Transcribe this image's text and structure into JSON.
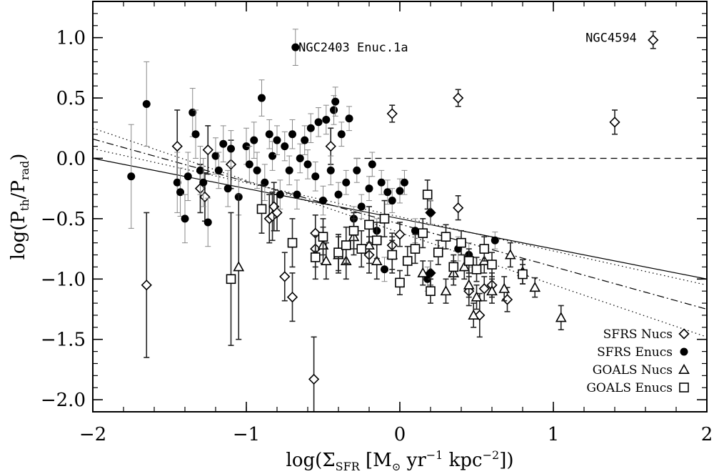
{
  "chart_data": {
    "type": "scatter",
    "xlim": [
      -2,
      2
    ],
    "ylim": [
      -2.1,
      1.3
    ],
    "x_ticks": [
      -2,
      -1,
      0,
      1,
      2
    ],
    "x_tick_labels": [
      "−2",
      "−1",
      "0",
      "1",
      "2"
    ],
    "y_ticks": [
      -2.0,
      -1.5,
      -1.0,
      -0.5,
      0.0,
      0.5,
      1.0
    ],
    "y_tick_labels": [
      "−2.0",
      "−1.5",
      "−1.0",
      "−0.5",
      "0.0",
      "0.5",
      "1.0"
    ],
    "xlabel": {
      "prefix": "log(Σ",
      "sub": "SFR",
      "mid": " [M",
      "sun": "⊙",
      "unit1": " yr",
      "exp1": "−1",
      "unit2": " kpc",
      "exp2": "−2",
      "suffix": "])"
    },
    "ylabel": {
      "prefix": "log(P",
      "sub1": "th",
      "mid": "/P",
      "sub2": "rad",
      "suffix": ")"
    },
    "grid": false,
    "legend_position": "bottom-right",
    "lines": [
      {
        "style": "solid",
        "x": [
          -2,
          2
        ],
        "y": [
          0.0,
          -1.0
        ]
      },
      {
        "style": "dotted",
        "x": [
          -2,
          2
        ],
        "y": [
          0.08,
          -1.05
        ]
      },
      {
        "style": "dotted",
        "x": [
          -2,
          2
        ],
        "y": [
          0.25,
          -1.48
        ]
      },
      {
        "style": "dashdot",
        "x": [
          -2,
          2
        ],
        "y": [
          0.16,
          -1.25
        ]
      },
      {
        "style": "dashed",
        "x": [
          -0.3,
          2
        ],
        "y": [
          0.0,
          0.0
        ]
      }
    ],
    "annotations": [
      {
        "text": "NGC2403 Enuc.1a",
        "x": -0.66,
        "y": 0.92
      },
      {
        "text": "NGC4594",
        "x": 1.21,
        "y": 1.0
      }
    ],
    "series": [
      {
        "name": "SFRS Nucs",
        "marker": "diamond",
        "points": [
          [
            -1.65,
            -1.05,
            0.6
          ],
          [
            -1.45,
            0.1,
            0.3
          ],
          [
            -1.3,
            -0.25,
            0.2
          ],
          [
            -1.27,
            -0.32,
            0.2
          ],
          [
            -1.25,
            0.07,
            0.2
          ],
          [
            -1.1,
            -0.05,
            0.2
          ],
          [
            -0.85,
            -0.5,
            0.2
          ],
          [
            -0.83,
            -0.48,
            0.2
          ],
          [
            -0.82,
            -0.4,
            0.2
          ],
          [
            -0.8,
            -0.45,
            0.15
          ],
          [
            -0.75,
            -0.98,
            0.2
          ],
          [
            -0.7,
            -1.15,
            0.2
          ],
          [
            -0.56,
            -1.83,
            0.35
          ],
          [
            -0.55,
            -0.75,
            0.15
          ],
          [
            -0.55,
            -0.62,
            0.15
          ],
          [
            -0.45,
            0.1,
            0.15
          ],
          [
            -0.2,
            -0.8,
            0.15
          ],
          [
            -0.05,
            0.37,
            0.07
          ],
          [
            -0.05,
            -0.72,
            0.1
          ],
          [
            0.0,
            -0.63,
            0.1
          ],
          [
            0.2,
            -0.95,
            0.1
          ],
          [
            0.2,
            -0.45,
            0.1
          ],
          [
            0.38,
            0.5,
            0.07
          ],
          [
            0.38,
            -0.41,
            0.1
          ],
          [
            0.45,
            -1.1,
            0.12
          ],
          [
            0.52,
            -1.3,
            0.18
          ],
          [
            0.55,
            -1.08,
            0.1
          ],
          [
            0.6,
            -1.05,
            0.1
          ],
          [
            0.7,
            -1.17,
            0.1
          ],
          [
            1.4,
            0.3,
            0.1
          ],
          [
            1.65,
            0.98,
            0.07
          ]
        ]
      },
      {
        "name": "SFRS Enucs",
        "marker": "circle",
        "points": [
          [
            -1.75,
            -0.15,
            0.43
          ],
          [
            -1.65,
            0.45,
            0.35
          ],
          [
            -1.45,
            -0.2,
            0.25
          ],
          [
            -1.43,
            -0.28,
            0.2
          ],
          [
            -1.4,
            -0.5,
            0.2
          ],
          [
            -1.38,
            -0.15,
            0.2
          ],
          [
            -1.35,
            0.38,
            0.2
          ],
          [
            -1.33,
            0.2,
            0.2
          ],
          [
            -1.3,
            -0.1,
            0.2
          ],
          [
            -1.28,
            -0.2,
            0.2
          ],
          [
            -1.25,
            -0.53,
            0.2
          ],
          [
            -1.2,
            0.02,
            0.15
          ],
          [
            -1.18,
            -0.1,
            0.15
          ],
          [
            -1.15,
            0.12,
            0.15
          ],
          [
            -1.12,
            -0.25,
            0.15
          ],
          [
            -1.1,
            0.08,
            0.15
          ],
          [
            -1.05,
            -0.32,
            0.15
          ],
          [
            -1.0,
            0.1,
            0.15
          ],
          [
            -0.98,
            -0.05,
            0.15
          ],
          [
            -0.95,
            0.15,
            0.15
          ],
          [
            -0.93,
            -0.1,
            0.15
          ],
          [
            -0.9,
            0.5,
            0.15
          ],
          [
            -0.88,
            -0.2,
            0.15
          ],
          [
            -0.85,
            0.2,
            0.12
          ],
          [
            -0.83,
            0.02,
            0.12
          ],
          [
            -0.8,
            0.15,
            0.12
          ],
          [
            -0.78,
            -0.3,
            0.12
          ],
          [
            -0.75,
            0.1,
            0.12
          ],
          [
            -0.72,
            -0.1,
            0.12
          ],
          [
            -0.7,
            0.2,
            0.12
          ],
          [
            -0.68,
            0.92,
            0.15
          ],
          [
            -0.67,
            -0.3,
            0.12
          ],
          [
            -0.65,
            0.0,
            0.12
          ],
          [
            -0.62,
            0.15,
            0.12
          ],
          [
            -0.6,
            -0.05,
            0.12
          ],
          [
            -0.58,
            0.25,
            0.12
          ],
          [
            -0.55,
            -0.15,
            0.12
          ],
          [
            -0.53,
            0.3,
            0.12
          ],
          [
            -0.5,
            -0.35,
            0.12
          ],
          [
            -0.48,
            0.32,
            0.12
          ],
          [
            -0.45,
            -0.1,
            0.12
          ],
          [
            -0.43,
            0.4,
            0.12
          ],
          [
            -0.42,
            0.47,
            0.12
          ],
          [
            -0.4,
            -0.3,
            0.1
          ],
          [
            -0.38,
            0.2,
            0.1
          ],
          [
            -0.35,
            -0.2,
            0.1
          ],
          [
            -0.33,
            0.33,
            0.1
          ],
          [
            -0.3,
            -0.5,
            0.1
          ],
          [
            -0.28,
            -0.1,
            0.1
          ],
          [
            -0.25,
            -0.4,
            0.1
          ],
          [
            -0.2,
            -0.25,
            0.1
          ],
          [
            -0.18,
            -0.05,
            0.1
          ],
          [
            -0.15,
            -0.6,
            0.1
          ],
          [
            -0.12,
            -0.2,
            0.1
          ],
          [
            -0.1,
            -0.92,
            0.1
          ],
          [
            -0.08,
            -0.28,
            0.1
          ],
          [
            -0.05,
            -0.35,
            0.1
          ],
          [
            0.0,
            -0.27,
            0.1
          ],
          [
            0.03,
            -0.2,
            0.1
          ],
          [
            0.1,
            -0.6,
            0.1
          ],
          [
            0.18,
            -1.0,
            0.1
          ],
          [
            0.2,
            -0.45,
            0.1
          ],
          [
            0.2,
            -0.95,
            0.1
          ],
          [
            0.38,
            -0.75,
            0.1
          ],
          [
            0.45,
            -0.8,
            0.1
          ],
          [
            0.62,
            -0.68,
            0.07
          ]
        ]
      },
      {
        "name": "GOALS Nucs",
        "marker": "triangle",
        "points": [
          [
            -1.05,
            -0.9,
            0.6
          ],
          [
            -0.5,
            -0.72,
            0.15
          ],
          [
            -0.48,
            -0.85,
            0.15
          ],
          [
            -0.4,
            -0.8,
            0.15
          ],
          [
            -0.35,
            -0.85,
            0.15
          ],
          [
            -0.3,
            -0.65,
            0.15
          ],
          [
            -0.2,
            -0.72,
            0.15
          ],
          [
            -0.15,
            -0.85,
            0.15
          ],
          [
            -0.05,
            -0.8,
            0.15
          ],
          [
            0.15,
            -0.95,
            0.1
          ],
          [
            0.3,
            -1.1,
            0.1
          ],
          [
            0.35,
            -0.95,
            0.1
          ],
          [
            0.42,
            -0.9,
            0.1
          ],
          [
            0.45,
            -1.05,
            0.1
          ],
          [
            0.48,
            -1.3,
            0.1
          ],
          [
            0.5,
            -1.15,
            0.1
          ],
          [
            0.55,
            -0.85,
            0.1
          ],
          [
            0.6,
            -1.1,
            0.1
          ],
          [
            0.68,
            -1.08,
            0.1
          ],
          [
            0.72,
            -0.8,
            0.1
          ],
          [
            0.8,
            -0.94,
            0.1
          ],
          [
            0.88,
            -1.07,
            0.08
          ],
          [
            1.05,
            -1.32,
            0.1
          ]
        ]
      },
      {
        "name": "GOALS Enucs",
        "marker": "square",
        "points": [
          [
            -1.1,
            -1.0,
            0.55
          ],
          [
            -0.9,
            -0.42,
            0.2
          ],
          [
            -0.7,
            -0.7,
            0.2
          ],
          [
            -0.55,
            -0.82,
            0.18
          ],
          [
            -0.5,
            -0.65,
            0.15
          ],
          [
            -0.4,
            -0.78,
            0.15
          ],
          [
            -0.35,
            -0.72,
            0.15
          ],
          [
            -0.3,
            -0.6,
            0.15
          ],
          [
            -0.25,
            -0.75,
            0.15
          ],
          [
            -0.2,
            -0.55,
            0.15
          ],
          [
            -0.15,
            -0.68,
            0.15
          ],
          [
            -0.1,
            -0.5,
            0.15
          ],
          [
            -0.05,
            -0.8,
            0.12
          ],
          [
            0.0,
            -1.03,
            0.1
          ],
          [
            0.05,
            -0.85,
            0.12
          ],
          [
            0.1,
            -0.75,
            0.12
          ],
          [
            0.15,
            -0.62,
            0.12
          ],
          [
            0.18,
            -0.3,
            0.12
          ],
          [
            0.2,
            -1.1,
            0.1
          ],
          [
            0.25,
            -0.78,
            0.1
          ],
          [
            0.3,
            -0.65,
            0.1
          ],
          [
            0.35,
            -0.9,
            0.1
          ],
          [
            0.4,
            -0.7,
            0.1
          ],
          [
            0.45,
            -0.85,
            0.1
          ],
          [
            0.5,
            -0.92,
            0.1
          ],
          [
            0.55,
            -0.75,
            0.1
          ],
          [
            0.6,
            -0.88,
            0.1
          ],
          [
            0.8,
            -0.96,
            0.08
          ]
        ]
      }
    ]
  }
}
